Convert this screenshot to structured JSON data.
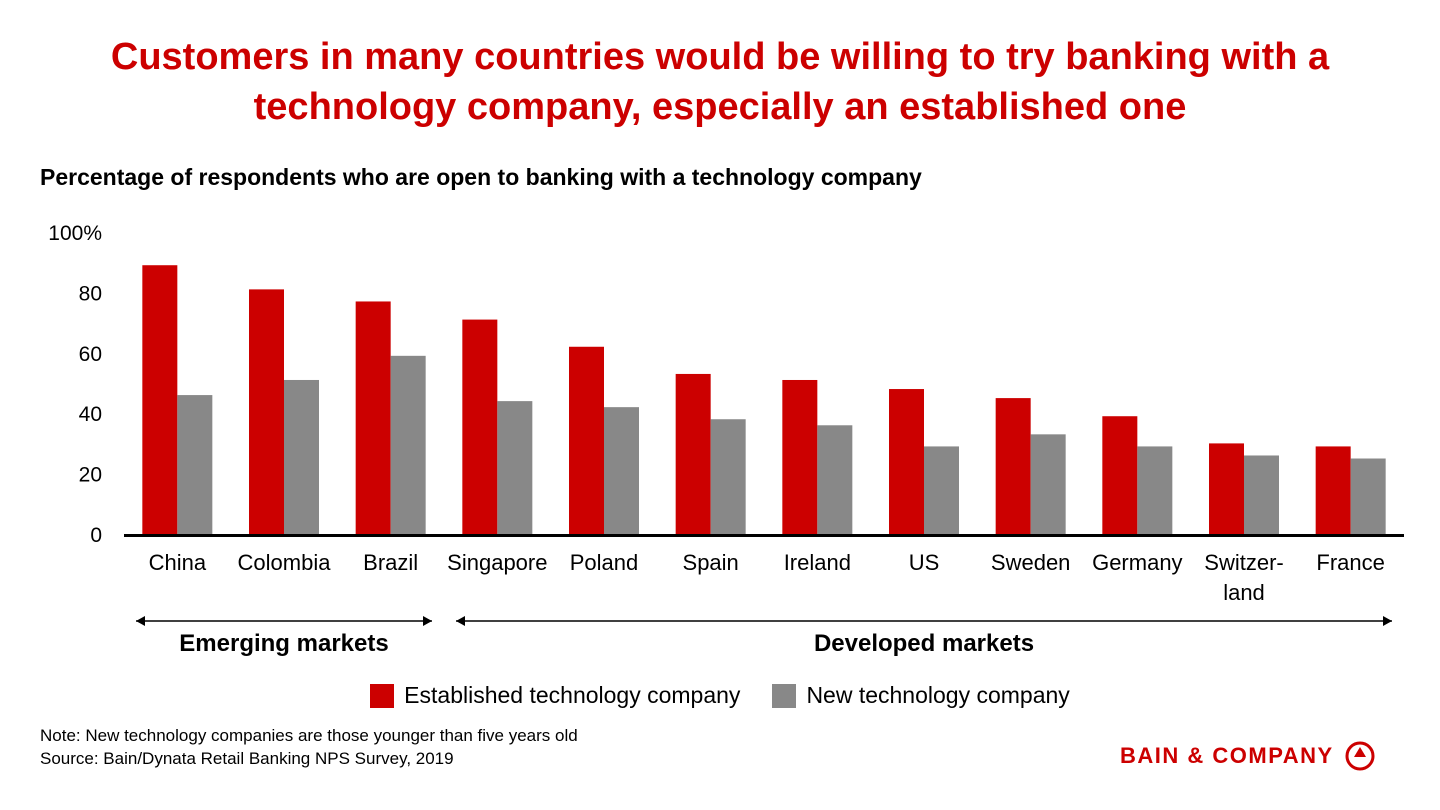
{
  "title_line1": "Customers in many countries would be willing to try banking with a",
  "title_line2": "technology company, especially an established one",
  "subtitle": "Percentage of respondents who are open to banking with a technology company",
  "colors": {
    "established": "#cc0000",
    "new": "#888888",
    "title": "#cc0000"
  },
  "chart_data": {
    "type": "bar",
    "categories": [
      "China",
      "Colombia",
      "Brazil",
      "Singapore",
      "Poland",
      "Spain",
      "Ireland",
      "US",
      "Sweden",
      "Germany",
      "Switzer-\nland",
      "France"
    ],
    "series": [
      {
        "name": "Established technology company",
        "values": [
          89,
          81,
          77,
          71,
          62,
          53,
          51,
          48,
          45,
          39,
          30,
          29
        ]
      },
      {
        "name": "New technology company",
        "values": [
          46,
          51,
          59,
          44,
          42,
          38,
          36,
          29,
          33,
          29,
          26,
          25
        ]
      }
    ],
    "yticks": [
      "0",
      "20",
      "40",
      "60",
      "80",
      "100%"
    ],
    "ylim": [
      0,
      100
    ],
    "groups": [
      {
        "label": "Emerging markets",
        "categories": [
          "China",
          "Colombia",
          "Brazil"
        ]
      },
      {
        "label": "Developed markets",
        "categories": [
          "Singapore",
          "Poland",
          "Spain",
          "Ireland",
          "US",
          "Sweden",
          "Germany",
          "Switzer-\nland",
          "France"
        ]
      }
    ],
    "legend_position": "bottom"
  },
  "legend": {
    "established": "Established technology company",
    "new": "New technology company"
  },
  "note": "Note: New technology companies are those younger than five years old",
  "source": "Source: Bain/Dynata Retail Banking NPS Survey, 2019",
  "logo_text": "BAIN & COMPANY"
}
